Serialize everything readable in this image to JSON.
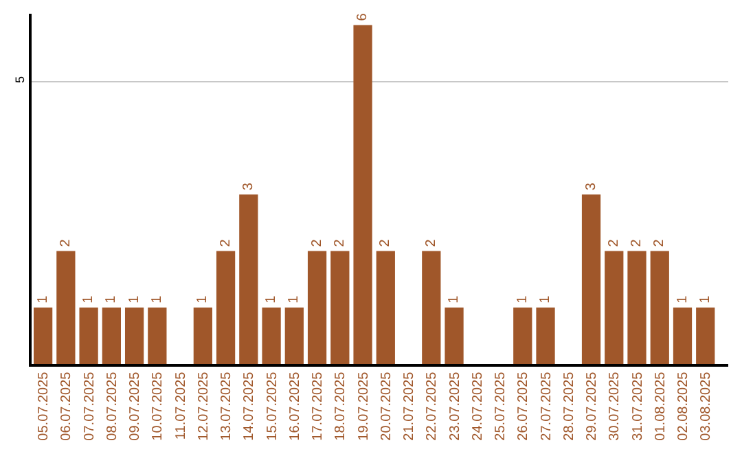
{
  "chart_data": {
    "type": "bar",
    "categories": [
      "05.07.2025",
      "06.07.2025",
      "07.07.2025",
      "08.07.2025",
      "09.07.2025",
      "10.07.2025",
      "11.07.2025",
      "12.07.2025",
      "13.07.2025",
      "14.07.2025",
      "15.07.2025",
      "16.07.2025",
      "17.07.2025",
      "18.07.2025",
      "19.07.2025",
      "20.07.2025",
      "21.07.2025",
      "22.07.2025",
      "23.07.2025",
      "24.07.2025",
      "25.07.2025",
      "26.07.2025",
      "27.07.2025",
      "28.07.2025",
      "29.07.2025",
      "30.07.2025",
      "31.07.2025",
      "01.08.2025",
      "02.08.2025",
      "03.08.2025"
    ],
    "values": [
      1,
      2,
      1,
      1,
      1,
      1,
      0,
      1,
      2,
      3,
      1,
      1,
      2,
      2,
      6,
      2,
      0,
      2,
      1,
      0,
      0,
      1,
      1,
      0,
      3,
      2,
      2,
      2,
      1,
      1
    ],
    "value_labels": [
      "1",
      "2",
      "1",
      "1",
      "1",
      "1",
      null,
      "1",
      "2",
      "3",
      "1",
      "1",
      "2",
      "2",
      "6",
      "2",
      null,
      "2",
      "1",
      null,
      null,
      "1",
      "1",
      null,
      "3",
      "2",
      "2",
      "2",
      "1",
      "1"
    ],
    "color": "#a0572a",
    "ylim": [
      0,
      6.2
    ],
    "yticks": [
      5
    ],
    "grid": "y",
    "legend": false
  }
}
